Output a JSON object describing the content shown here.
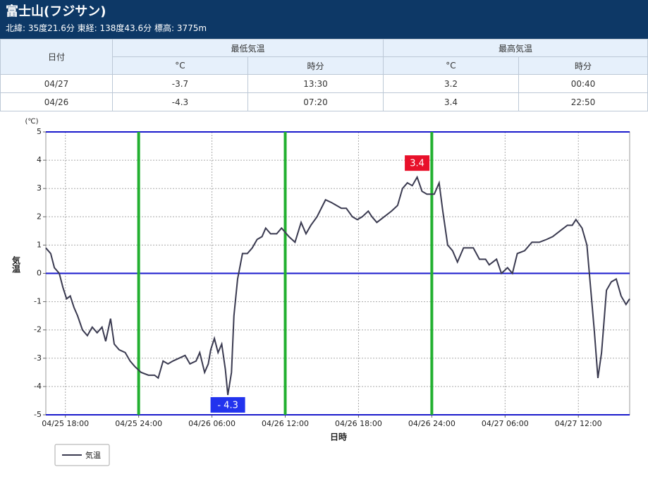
{
  "header": {
    "title": "富士山(フジサン)",
    "subtitle": "北緯: 35度21.6分 東経: 138度43.6分 標高: 3775m"
  },
  "table": {
    "header_top": [
      "日付",
      "最低気温",
      "最高気温"
    ],
    "header_sub": [
      "°C",
      "時分",
      "°C",
      "時分"
    ],
    "rows": [
      [
        "04/27",
        "-3.7",
        "13:30",
        "3.2",
        "00:40"
      ],
      [
        "04/26",
        "-4.3",
        "07:20",
        "3.4",
        "22:50"
      ]
    ]
  },
  "chart_data": {
    "type": "line",
    "y_unit": "(℃)",
    "ylabel": "気温",
    "xlabel": "日時",
    "x": [
      16.4,
      16.8,
      17.1,
      17.5,
      17.8,
      18.1,
      18.4,
      18.7,
      19.0,
      19.4,
      19.8,
      20.2,
      20.6,
      21.0,
      21.3,
      21.7,
      22.0,
      22.4,
      22.9,
      23.3,
      23.7,
      24.2,
      24.8,
      25.3,
      25.6,
      26.0,
      26.4,
      26.8,
      27.3,
      27.8,
      28.2,
      28.7,
      29.0,
      29.4,
      29.7,
      29.9,
      30.2,
      30.5,
      30.8,
      31.1,
      31.3,
      31.6,
      31.8,
      32.1,
      32.5,
      32.9,
      33.3,
      33.7,
      34.1,
      34.4,
      34.8,
      35.3,
      35.7,
      36.3,
      36.8,
      37.3,
      37.7,
      38.1,
      38.6,
      39.3,
      39.8,
      40.2,
      40.6,
      41.0,
      41.5,
      41.9,
      42.3,
      42.8,
      43.1,
      43.5,
      44.1,
      44.7,
      45.2,
      45.6,
      46.0,
      46.4,
      46.8,
      47.2,
      47.6,
      48.2,
      48.6,
      48.9,
      49.3,
      49.7,
      50.1,
      50.6,
      51.0,
      51.4,
      51.9,
      52.4,
      52.7,
      53.3,
      53.7,
      54.2,
      54.6,
      55.0,
      55.6,
      56.2,
      56.8,
      57.4,
      57.9,
      58.5,
      59.1,
      59.5,
      59.8,
      60.3,
      60.7,
      61.0,
      61.3,
      61.6,
      61.9,
      62.3,
      62.7,
      63.1,
      63.5,
      63.9,
      64.2
    ],
    "series": [
      {
        "name": "気温",
        "color": "#3a3a50",
        "values": [
          0.9,
          0.7,
          0.2,
          0.0,
          -0.5,
          -0.9,
          -0.8,
          -1.2,
          -1.5,
          -2.0,
          -2.2,
          -1.9,
          -2.1,
          -1.9,
          -2.4,
          -1.6,
          -2.5,
          -2.7,
          -2.8,
          -3.1,
          -3.3,
          -3.5,
          -3.6,
          -3.6,
          -3.7,
          -3.1,
          -3.2,
          -3.1,
          -3.0,
          -2.9,
          -3.2,
          -3.1,
          -2.8,
          -3.5,
          -3.2,
          -2.7,
          -2.3,
          -2.8,
          -2.5,
          -3.4,
          -4.3,
          -3.5,
          -1.5,
          -0.2,
          0.7,
          0.7,
          0.9,
          1.2,
          1.3,
          1.6,
          1.4,
          1.4,
          1.6,
          1.3,
          1.1,
          1.8,
          1.4,
          1.7,
          2.0,
          2.6,
          2.5,
          2.4,
          2.3,
          2.3,
          2.0,
          1.9,
          2.0,
          2.2,
          2.0,
          1.8,
          2.0,
          2.2,
          2.4,
          3.0,
          3.2,
          3.1,
          3.4,
          2.9,
          2.8,
          2.8,
          3.2,
          2.2,
          1.0,
          0.8,
          0.4,
          0.9,
          0.9,
          0.9,
          0.5,
          0.5,
          0.3,
          0.5,
          0.0,
          0.2,
          0.0,
          0.7,
          0.8,
          1.1,
          1.1,
          1.2,
          1.3,
          1.5,
          1.7,
          1.7,
          1.9,
          1.6,
          1.0,
          -0.5,
          -2.0,
          -3.7,
          -2.8,
          -0.6,
          -0.3,
          -0.2,
          -0.8,
          -1.1,
          -0.9
        ]
      }
    ],
    "xlim": [
      16.4,
      64.2
    ],
    "ylim": [
      -5,
      5
    ],
    "yticks": [
      -5,
      -4,
      -3,
      -2,
      -1,
      0,
      1,
      2,
      3,
      4,
      5
    ],
    "xticks": [
      {
        "value": 18,
        "label": "04/25 18:00"
      },
      {
        "value": 24,
        "label": "04/25 24:00"
      },
      {
        "value": 30,
        "label": "04/26 06:00"
      },
      {
        "value": 36,
        "label": "04/26 12:00"
      },
      {
        "value": 42,
        "label": "04/26 18:00"
      },
      {
        "value": 48,
        "label": "04/26 24:00"
      },
      {
        "value": 54,
        "label": "04/27 06:00"
      },
      {
        "value": 60,
        "label": "04/27 12:00"
      }
    ],
    "vlines": [
      24,
      36,
      48
    ],
    "vline_color": "#22b030",
    "hlines": [
      -5,
      0,
      5
    ],
    "hline_color": "#1a1acc",
    "grid": true,
    "legend": "bottom-left",
    "annotations": [
      {
        "text": "3.4",
        "x": 46.8,
        "y": 3.4,
        "color": "#e8102a"
      },
      {
        "text": "- 4.3",
        "x": 31.3,
        "y": -4.3,
        "color": "#2233ee"
      }
    ]
  }
}
